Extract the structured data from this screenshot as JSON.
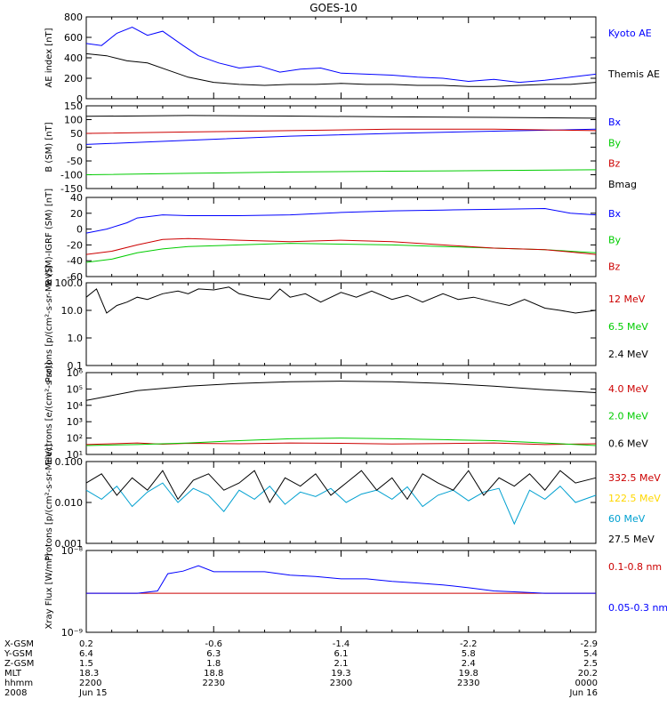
{
  "title": "GOES-10",
  "colors": {
    "blue": "#0000ff",
    "black": "#000000",
    "green": "#00cc00",
    "red": "#cc0000",
    "yellow": "#ffd700",
    "cyan": "#00a0d0"
  },
  "chart_data": [
    {
      "type": "line",
      "ylabel": "AE index [nT]",
      "yscale": "linear",
      "ylim": [
        0,
        800
      ],
      "yticks": [
        "0",
        "200",
        "400",
        "600",
        "800"
      ],
      "series": [
        {
          "name": "Kyoto AE",
          "color": "blue",
          "x": [
            0,
            0.03,
            0.06,
            0.09,
            0.12,
            0.15,
            0.19,
            0.22,
            0.26,
            0.3,
            0.34,
            0.38,
            0.42,
            0.46,
            0.5,
            0.55,
            0.6,
            0.65,
            0.7,
            0.75,
            0.8,
            0.85,
            0.9,
            0.95,
            1
          ],
          "values": [
            540,
            520,
            640,
            700,
            620,
            660,
            520,
            420,
            350,
            300,
            320,
            260,
            290,
            300,
            250,
            240,
            230,
            210,
            200,
            170,
            190,
            160,
            180,
            210,
            240
          ]
        },
        {
          "name": "Themis AE",
          "color": "black",
          "x": [
            0,
            0.04,
            0.08,
            0.12,
            0.16,
            0.2,
            0.25,
            0.3,
            0.35,
            0.4,
            0.45,
            0.5,
            0.55,
            0.6,
            0.65,
            0.7,
            0.75,
            0.8,
            0.85,
            0.9,
            0.95,
            1
          ],
          "values": [
            440,
            420,
            370,
            350,
            280,
            210,
            160,
            140,
            130,
            140,
            140,
            150,
            140,
            140,
            130,
            130,
            120,
            120,
            130,
            140,
            140,
            160
          ]
        }
      ]
    },
    {
      "type": "line",
      "ylabel": "B (SM) [nT]",
      "yscale": "linear",
      "ylim": [
        -150,
        150
      ],
      "yticks": [
        "-150",
        "-100",
        "-50",
        "0",
        "50",
        "100",
        "150"
      ],
      "series": [
        {
          "name": "Bx",
          "color": "blue",
          "x": [
            0,
            0.2,
            0.4,
            0.6,
            0.8,
            1
          ],
          "values": [
            10,
            25,
            40,
            50,
            58,
            65
          ]
        },
        {
          "name": "By",
          "color": "green",
          "x": [
            0,
            0.2,
            0.4,
            0.6,
            0.8,
            1
          ],
          "values": [
            -100,
            -95,
            -90,
            -87,
            -85,
            -82
          ]
        },
        {
          "name": "Bz",
          "color": "red",
          "x": [
            0,
            0.2,
            0.4,
            0.6,
            0.8,
            1
          ],
          "values": [
            50,
            55,
            60,
            65,
            65,
            60
          ]
        },
        {
          "name": "Bmag",
          "color": "black",
          "x": [
            0,
            0.2,
            0.4,
            0.6,
            0.8,
            1
          ],
          "values": [
            112,
            115,
            113,
            110,
            108,
            105
          ]
        }
      ]
    },
    {
      "type": "line",
      "ylabel": "B (SM)-IGRF (SM) [nT]",
      "yscale": "linear",
      "ylim": [
        -60,
        40
      ],
      "yticks": [
        "-60",
        "-40",
        "-20",
        "0",
        "20",
        "40"
      ],
      "series": [
        {
          "name": "Bx",
          "color": "blue",
          "x": [
            0,
            0.04,
            0.08,
            0.1,
            0.15,
            0.2,
            0.3,
            0.4,
            0.5,
            0.6,
            0.7,
            0.8,
            0.9,
            0.95,
            1
          ],
          "values": [
            -5,
            0,
            8,
            14,
            18,
            17,
            17,
            18,
            21,
            23,
            24,
            25,
            26,
            20,
            18
          ]
        },
        {
          "name": "By",
          "color": "green",
          "x": [
            0,
            0.05,
            0.1,
            0.15,
            0.2,
            0.3,
            0.4,
            0.5,
            0.6,
            0.7,
            0.8,
            0.9,
            1
          ],
          "values": [
            -42,
            -38,
            -30,
            -25,
            -22,
            -20,
            -18,
            -19,
            -20,
            -22,
            -24,
            -26,
            -30
          ]
        },
        {
          "name": "Bz",
          "color": "red",
          "x": [
            0,
            0.05,
            0.1,
            0.15,
            0.2,
            0.3,
            0.4,
            0.5,
            0.6,
            0.7,
            0.8,
            0.9,
            1
          ],
          "values": [
            -32,
            -28,
            -20,
            -13,
            -12,
            -14,
            -16,
            -14,
            -16,
            -20,
            -24,
            -26,
            -32
          ]
        }
      ]
    },
    {
      "type": "line",
      "ylabel": "Protons [p/(cm²-s-sr-MeV)]",
      "yscale": "log",
      "ylim": [
        0.1,
        100
      ],
      "yticks": [
        "0.1",
        "1.0",
        "10.0",
        "100.0"
      ],
      "series": [
        {
          "name": "12 MeV",
          "color": "red",
          "x": [],
          "values": []
        },
        {
          "name": "6.5 MeV",
          "color": "green",
          "x": [],
          "values": []
        },
        {
          "name": "2.4 MeV",
          "color": "black",
          "x": [
            0,
            0.02,
            0.04,
            0.06,
            0.08,
            0.1,
            0.12,
            0.15,
            0.18,
            0.2,
            0.22,
            0.25,
            0.28,
            0.3,
            0.33,
            0.36,
            0.38,
            0.4,
            0.43,
            0.46,
            0.5,
            0.53,
            0.56,
            0.6,
            0.63,
            0.66,
            0.7,
            0.73,
            0.76,
            0.8,
            0.83,
            0.86,
            0.9,
            0.93,
            0.96,
            1
          ],
          "values": [
            30,
            60,
            8,
            15,
            20,
            30,
            25,
            40,
            50,
            40,
            60,
            55,
            70,
            40,
            30,
            25,
            60,
            30,
            40,
            20,
            45,
            30,
            50,
            25,
            35,
            20,
            40,
            25,
            30,
            20,
            15,
            25,
            12,
            10,
            8,
            10
          ]
        }
      ]
    },
    {
      "type": "line",
      "ylabel": "Electrons [e/(cm²-s-sr)]",
      "yscale": "log",
      "ylim": [
        10,
        1000000
      ],
      "yticks": [
        "10¹",
        "10²",
        "10³",
        "10⁴",
        "10⁵",
        "10⁶"
      ],
      "series": [
        {
          "name": "4.0 MeV",
          "color": "red",
          "x": [
            0,
            0.05,
            0.1,
            0.15,
            0.2,
            0.3,
            0.4,
            0.5,
            0.6,
            0.7,
            0.8,
            0.9,
            1
          ],
          "values": [
            40,
            45,
            50,
            42,
            48,
            45,
            50,
            48,
            44,
            46,
            50,
            40,
            45
          ]
        },
        {
          "name": "2.0 MeV",
          "color": "green",
          "x": [
            0,
            0.1,
            0.2,
            0.3,
            0.4,
            0.5,
            0.6,
            0.7,
            0.8,
            0.9,
            1
          ],
          "values": [
            35,
            40,
            50,
            70,
            90,
            100,
            90,
            80,
            70,
            50,
            35
          ]
        },
        {
          "name": "0.6 MeV",
          "color": "black",
          "x": [
            0,
            0.05,
            0.1,
            0.2,
            0.3,
            0.4,
            0.5,
            0.6,
            0.7,
            0.8,
            0.9,
            1
          ],
          "values": [
            20000,
            40000,
            80000,
            150000,
            220000,
            280000,
            300000,
            280000,
            220000,
            150000,
            90000,
            60000
          ]
        }
      ]
    },
    {
      "type": "line",
      "ylabel": "Protons [p/(cm²-s-sr-MeV)]",
      "yscale": "log",
      "ylim": [
        0.001,
        0.1
      ],
      "yticks": [
        "0.001",
        "0.010",
        "0.100"
      ],
      "series": [
        {
          "name": "332.5 MeV",
          "color": "red",
          "x": [],
          "values": []
        },
        {
          "name": "122.5 MeV",
          "color": "yellow",
          "x": [],
          "values": []
        },
        {
          "name": "60 MeV",
          "color": "cyan",
          "x": [
            0,
            0.03,
            0.06,
            0.09,
            0.12,
            0.15,
            0.18,
            0.21,
            0.24,
            0.27,
            0.3,
            0.33,
            0.36,
            0.39,
            0.42,
            0.45,
            0.48,
            0.51,
            0.54,
            0.57,
            0.6,
            0.63,
            0.66,
            0.69,
            0.72,
            0.75,
            0.78,
            0.81,
            0.84,
            0.87,
            0.9,
            0.93,
            0.96,
            1
          ],
          "values": [
            0.02,
            0.012,
            0.025,
            0.008,
            0.018,
            0.03,
            0.01,
            0.022,
            0.015,
            0.006,
            0.02,
            0.012,
            0.025,
            0.009,
            0.018,
            0.014,
            0.022,
            0.01,
            0.016,
            0.02,
            0.012,
            0.024,
            0.008,
            0.015,
            0.02,
            0.011,
            0.018,
            0.022,
            0.003,
            0.02,
            0.012,
            0.025,
            0.01,
            0.015
          ]
        },
        {
          "name": "27.5 MeV",
          "color": "black",
          "x": [
            0.0,
            0.03,
            0.06,
            0.09,
            0.12,
            0.15,
            0.18,
            0.21,
            0.24,
            0.27,
            0.3,
            0.33,
            0.36,
            0.39,
            0.42,
            0.45,
            0.48,
            0.51,
            0.54,
            0.57,
            0.6,
            0.63,
            0.66,
            0.69,
            0.72,
            0.75,
            0.78,
            0.81,
            0.84,
            0.87,
            0.9,
            0.93,
            0.96,
            1
          ],
          "values": [
            0.03,
            0.05,
            0.015,
            0.04,
            0.02,
            0.06,
            0.012,
            0.035,
            0.05,
            0.02,
            0.03,
            0.06,
            0.01,
            0.04,
            0.025,
            0.05,
            0.015,
            0.03,
            0.06,
            0.02,
            0.04,
            0.012,
            0.05,
            0.03,
            0.02,
            0.06,
            0.015,
            0.04,
            0.025,
            0.05,
            0.02,
            0.06,
            0.03,
            0.04
          ]
        }
      ]
    },
    {
      "type": "line",
      "ylabel": "Xray Flux [W/m²]",
      "yscale": "log",
      "ylim": [
        1e-09,
        1e-08
      ],
      "yticks": [
        "10⁻⁹",
        "10⁻⁸"
      ],
      "series": [
        {
          "name": "0.1-0.8 nm",
          "color": "red",
          "x": [
            0,
            1
          ],
          "values": [
            3e-09,
            3e-09
          ]
        },
        {
          "name": "0.05-0.3 nm",
          "color": "blue",
          "x": [
            0,
            0.1,
            0.14,
            0.16,
            0.19,
            0.22,
            0.25,
            0.3,
            0.35,
            0.4,
            0.45,
            0.5,
            0.55,
            0.6,
            0.65,
            0.7,
            0.75,
            0.8,
            0.85,
            0.9,
            1
          ],
          "values": [
            3e-09,
            3e-09,
            3.2e-09,
            5.2e-09,
            5.6e-09,
            6.5e-09,
            5.5e-09,
            5.5e-09,
            5.5e-09,
            5e-09,
            4.8e-09,
            4.5e-09,
            4.5e-09,
            4.2e-09,
            4e-09,
            3.8e-09,
            3.5e-09,
            3.2e-09,
            3.1e-09,
            3e-09,
            3e-09
          ]
        }
      ]
    }
  ],
  "ephemeris": {
    "labels": [
      "X-GSM",
      "Y-GSM",
      "Z-GSM",
      "MLT",
      "hhmm",
      "2008"
    ],
    "columns": [
      {
        "pos": 0,
        "vals": [
          "0.2",
          "6.4",
          "1.5",
          "18.3",
          "2200",
          "Jun 15"
        ]
      },
      {
        "pos": 0.25,
        "vals": [
          "-0.6",
          "6.3",
          "1.8",
          "18.8",
          "2230",
          ""
        ]
      },
      {
        "pos": 0.5,
        "vals": [
          "-1.4",
          "6.1",
          "2.1",
          "19.3",
          "2300",
          ""
        ]
      },
      {
        "pos": 0.75,
        "vals": [
          "-2.2",
          "5.8",
          "2.4",
          "19.8",
          "2330",
          ""
        ]
      },
      {
        "pos": 1,
        "vals": [
          "-2.9",
          "5.4",
          "2.5",
          "20.2",
          "0000",
          "Jun 16"
        ]
      }
    ]
  }
}
